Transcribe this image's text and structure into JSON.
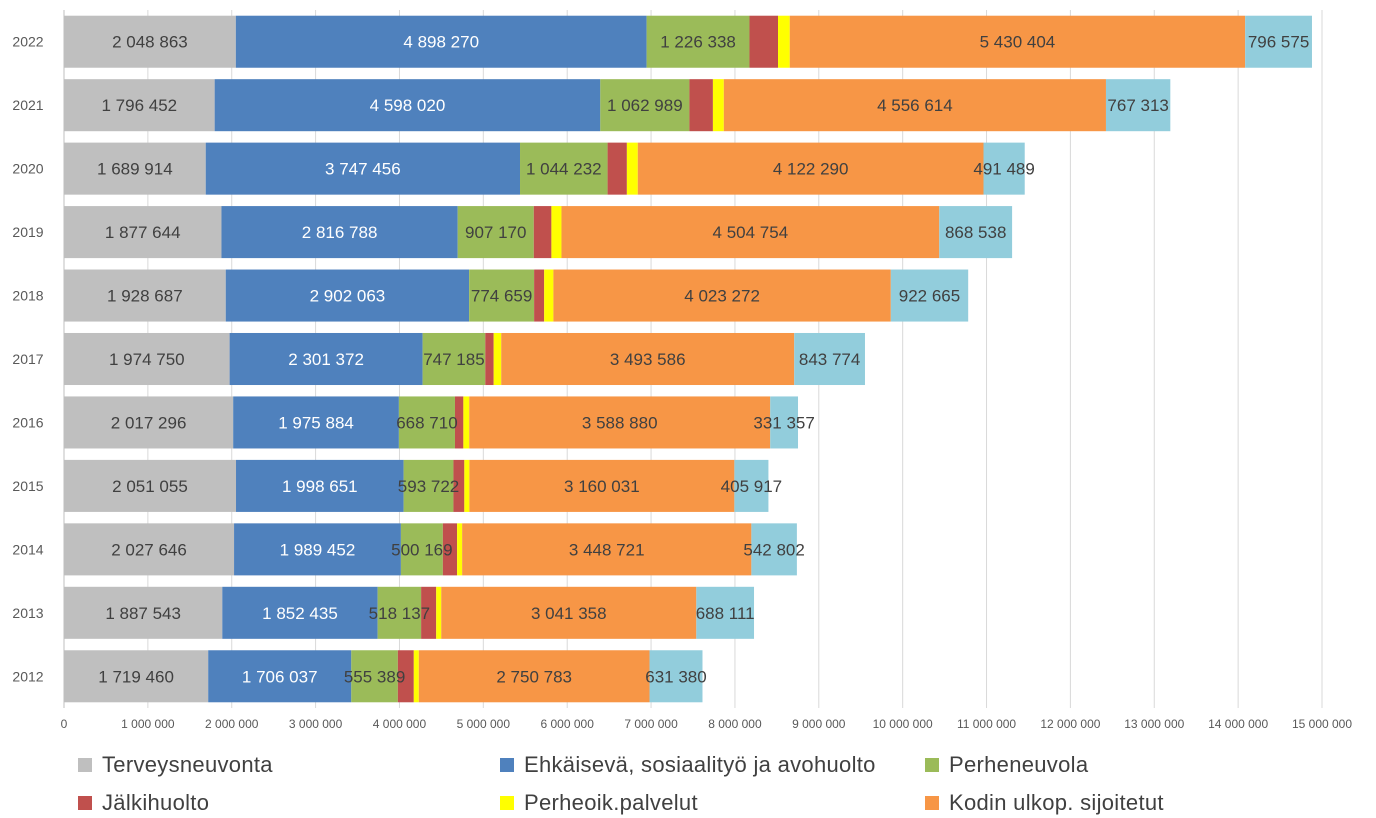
{
  "chart_data": {
    "type": "bar",
    "orientation": "horizontal",
    "stacked": true,
    "title": "",
    "xlabel": "",
    "ylabel": "",
    "xlim": [
      0,
      15000000
    ],
    "x_ticks": [
      "0",
      "1 000 000",
      "2 000 000",
      "3 000 000",
      "4 000 000",
      "5 000 000",
      "6 000 000",
      "7 000 000",
      "8 000 000",
      "9 000 000",
      "10 000 000",
      "11 000 000",
      "12 000 000",
      "13 000 000",
      "14 000 000",
      "15 000 000"
    ],
    "x_tick_values": [
      0,
      1000000,
      2000000,
      3000000,
      4000000,
      5000000,
      6000000,
      7000000,
      8000000,
      9000000,
      10000000,
      11000000,
      12000000,
      13000000,
      14000000,
      15000000
    ],
    "grid": "vertical",
    "legend_position": "bottom",
    "categories": [
      "2022",
      "2021",
      "2020",
      "2019",
      "2018",
      "2017",
      "2016",
      "2015",
      "2014",
      "2013",
      "2012"
    ],
    "series": [
      {
        "name": "Terveysneuvonta",
        "color": "#bfbfbf",
        "labeled": true,
        "values": [
          2048863,
          1796452,
          1689914,
          1877644,
          1928687,
          1974750,
          2017296,
          2051055,
          2027646,
          1887543,
          1719460
        ],
        "labels": [
          "2 048 863",
          "1 796 452",
          "1 689 914",
          "1 877 644",
          "1 928 687",
          "1 974 750",
          "2 017 296",
          "2 051 055",
          "2 027 646",
          "1 887 543",
          "1 719 460"
        ]
      },
      {
        "name": "Ehkäisevä, sosiaalityö ja avohuolto",
        "color": "#4f81bd",
        "labeled": true,
        "values": [
          4898270,
          4598020,
          3747456,
          2816788,
          2902063,
          2301372,
          1975884,
          1998651,
          1989452,
          1852435,
          1706037
        ],
        "labels": [
          "4 898 270",
          "4 598 020",
          "3 747 456",
          "2 816 788",
          "2 902 063",
          "2 301 372",
          "1 975 884",
          "1 998 651",
          "1 989 452",
          "1 852 435",
          "1 706 037"
        ]
      },
      {
        "name": "Perheneuvola",
        "color": "#9bbb59",
        "labeled": true,
        "values": [
          1226338,
          1062989,
          1044232,
          907170,
          774659,
          747185,
          668710,
          593722,
          500169,
          518137,
          555389
        ],
        "labels": [
          "1 226 338",
          "1 062 989",
          "1 044 232",
          "907 170",
          "774 659",
          "747 185",
          "668 710",
          "593 722",
          "500 169",
          "518 137",
          "555 389"
        ]
      },
      {
        "name": "Jälkihuolto",
        "color": "#c0504d",
        "labeled": false,
        "values": [
          340000,
          280000,
          230000,
          210000,
          120000,
          100000,
          100000,
          130000,
          170000,
          180000,
          190000
        ]
      },
      {
        "name": "Perheoik.palvelut",
        "color": "#ffff00",
        "labeled": false,
        "values": [
          140000,
          130000,
          130000,
          120000,
          110000,
          90000,
          70000,
          60000,
          60000,
          60000,
          60000
        ]
      },
      {
        "name": "Kodin ulkop. sijoitetut",
        "color": "#f79646",
        "labeled": true,
        "values": [
          5430404,
          4556614,
          4122290,
          4504754,
          4023272,
          3493586,
          3588880,
          3160031,
          3448721,
          3041358,
          2750783
        ],
        "labels": [
          "5 430 404",
          "4 556 614",
          "4 122 290",
          "4 504 754",
          "4 023 272",
          "3 493 586",
          "3 588 880",
          "3 160 031",
          "3 448 721",
          "3 041 358",
          "2 750 783"
        ]
      },
      {
        "name": "",
        "color": "#92cddc",
        "labeled": true,
        "values": [
          796575,
          767313,
          491489,
          868538,
          922665,
          843774,
          331357,
          405917,
          542802,
          688111,
          631380
        ],
        "labels": [
          "796 575",
          "767 313",
          "491 489",
          "868 538",
          "922 665",
          "843 774",
          "331 357",
          "405 917",
          "542 802",
          "688 111",
          "631 380"
        ]
      }
    ]
  },
  "legend": {
    "items": [
      {
        "label": "Terveysneuvonta",
        "color": "#bfbfbf"
      },
      {
        "label": "Ehkäisevä, sosiaalityö ja avohuolto",
        "color": "#4f81bd"
      },
      {
        "label": "Perheneuvola",
        "color": "#9bbb59"
      },
      {
        "label": "Jälkihuolto",
        "color": "#c0504d"
      },
      {
        "label": "Perheoik.palvelut",
        "color": "#ffff00"
      },
      {
        "label": "Kodin ulkop. sijoitetut",
        "color": "#f79646"
      }
    ]
  }
}
